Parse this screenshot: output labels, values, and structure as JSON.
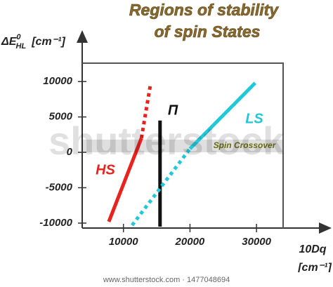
{
  "chart_data": {
    "type": "line",
    "title": [
      "Regions of stability",
      "of spin States"
    ],
    "y_label": {
      "main": "ΔE",
      "sup": "0",
      "sub": "HL",
      "unit": "[cm⁻¹]"
    },
    "x_label": {
      "main": "10Dq",
      "unit": "[cm⁻¹]"
    },
    "xlim": [
      3800,
      34000
    ],
    "ylim": [
      -10700,
      12600
    ],
    "xticks": [
      10000,
      20000,
      30000
    ],
    "yticks": [
      10000,
      5000,
      0,
      -5000,
      -10000
    ],
    "series": [
      {
        "name": "HS",
        "color": "#e8231f",
        "x": [
          7800,
          12700,
          14100
        ],
        "values": [
          -9800,
          2000,
          9800
        ],
        "styles": [
          "solid",
          "dotted"
        ]
      },
      {
        "name": "Π",
        "color": "#111111",
        "x": [
          15500,
          15500
        ],
        "values": [
          -10500,
          4500
        ],
        "styles": [
          "solid"
        ]
      },
      {
        "name": "LS",
        "color": "#22c8d8",
        "x": [
          11300,
          20000,
          29800
        ],
        "values": [
          -10300,
          500,
          9800
        ],
        "styles": [
          "dotted",
          "solid"
        ]
      }
    ],
    "band": {
      "label": "Spin Crossover",
      "y": [
        0,
        1800
      ]
    },
    "watermark": "shutterstock",
    "footer": "www.shutterstock.com · 1477048694"
  }
}
